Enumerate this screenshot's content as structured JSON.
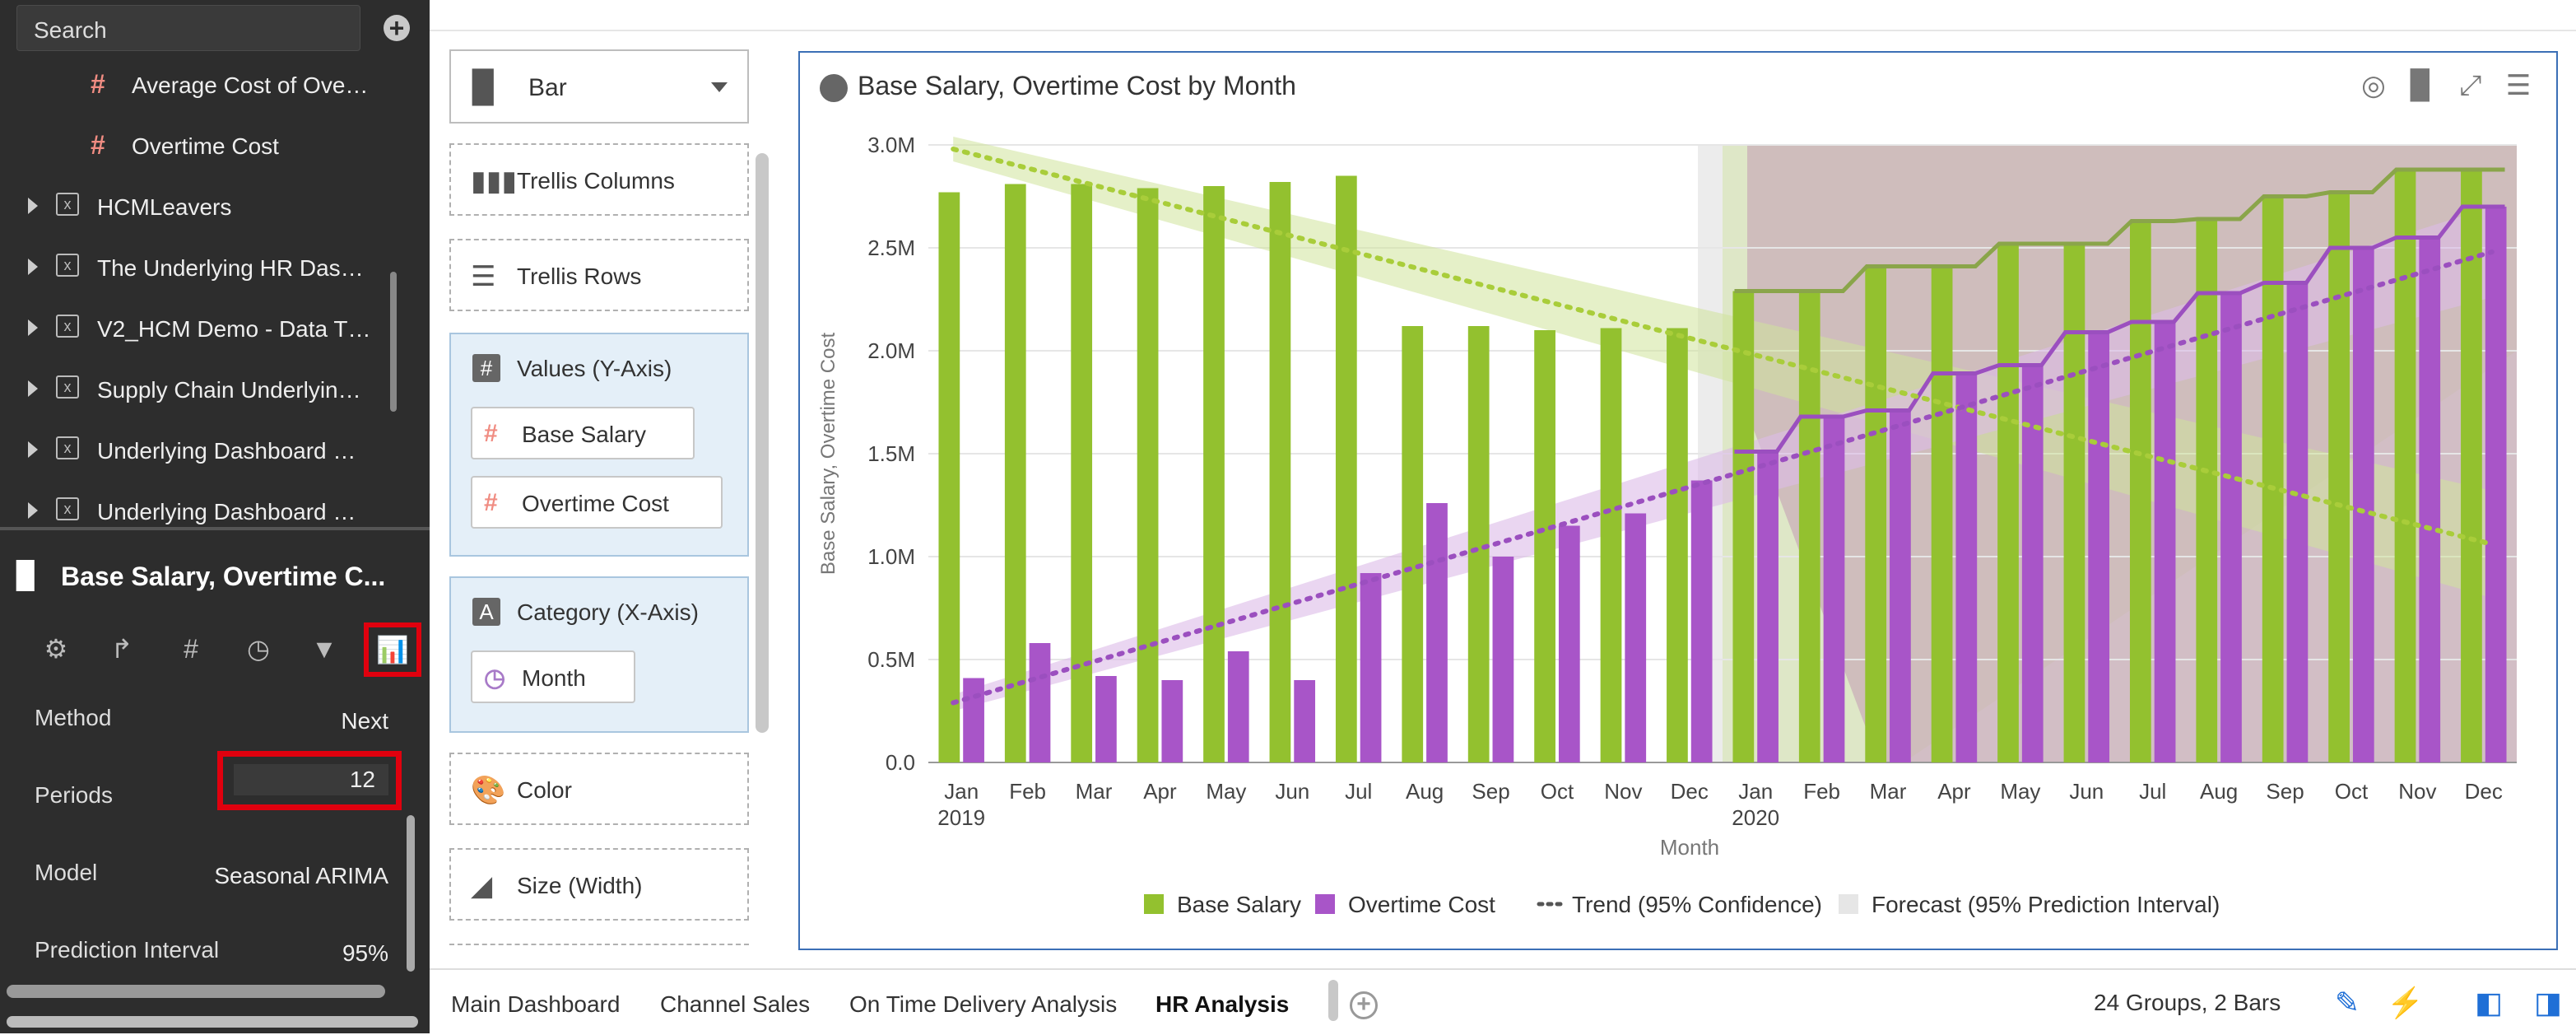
{
  "data_panel": {
    "search_placeholder": "Search",
    "tree": [
      {
        "type": "measure",
        "label": "Average Cost of Ove…"
      },
      {
        "type": "measure",
        "label": "Overtime Cost"
      },
      {
        "type": "dataset",
        "label": "HCMLeavers"
      },
      {
        "type": "dataset",
        "label": "The Underlying HR Das…"
      },
      {
        "type": "dataset",
        "label": "V2_HCM Demo - Data T…"
      },
      {
        "type": "dataset",
        "label": "Supply Chain Underlyin…"
      },
      {
        "type": "dataset",
        "label": "Underlying Dashboard …"
      },
      {
        "type": "dataset",
        "label": "Underlying Dashboard …"
      }
    ]
  },
  "properties": {
    "title": "Base Salary, Overtime C...",
    "tabs": [
      "general-icon",
      "axis-icon",
      "values-icon",
      "time-icon",
      "filter-icon",
      "analytics-icon"
    ],
    "rows": [
      {
        "label": "Method",
        "value": "Next"
      },
      {
        "label": "Periods",
        "value": "12"
      },
      {
        "label": "Model",
        "value": "Seasonal ARIMA"
      },
      {
        "label": "Prediction Interval",
        "value": "95%"
      }
    ]
  },
  "grammar": {
    "chart_type": "Bar",
    "trellis_columns": "Trellis Columns",
    "trellis_rows": "Trellis Rows",
    "values_title": "Values (Y-Axis)",
    "values": [
      "Base Salary",
      "Overtime Cost"
    ],
    "category_title": "Category (X-Axis)",
    "category": "Month",
    "color": "Color",
    "size": "Size (Width)"
  },
  "chart": {
    "title": "Base Salary, Overtime Cost by Month",
    "toolbar_icons": [
      "target-icon",
      "bar-chart-icon",
      "expand-icon",
      "menu-icon"
    ]
  },
  "chart_data": {
    "type": "bar",
    "title": "Base Salary, Overtime Cost by Month",
    "xlabel": "Month",
    "ylabel": "Base Salary, Overtime Cost",
    "ylim": [
      0,
      3000000
    ],
    "yticks": [
      "0.0",
      "0.5M",
      "1.0M",
      "1.5M",
      "2.0M",
      "2.5M",
      "3.0M"
    ],
    "categories": [
      "Jan 2019",
      "Feb",
      "Mar",
      "Apr",
      "May",
      "Jun",
      "Jul",
      "Aug",
      "Sep",
      "Oct",
      "Nov",
      "Dec",
      "Jan 2020",
      "Feb",
      "Mar",
      "Apr",
      "May",
      "Jun",
      "Jul",
      "Aug",
      "Sep",
      "Oct",
      "Nov",
      "Dec"
    ],
    "series": [
      {
        "name": "Base Salary",
        "color": "#93c12f",
        "values": [
          2770000,
          2810000,
          2810000,
          2790000,
          2800000,
          2820000,
          2850000,
          2120000,
          2120000,
          2100000,
          2110000,
          2110000,
          2290000,
          2290000,
          2410000,
          2410000,
          2520000,
          2520000,
          2630000,
          2640000,
          2750000,
          2770000,
          2880000,
          2880000
        ]
      },
      {
        "name": "Overtime Cost",
        "color": "#a855c8",
        "values": [
          410000,
          580000,
          420000,
          400000,
          540000,
          400000,
          920000,
          1260000,
          1000000,
          1150000,
          1210000,
          1370000,
          1510000,
          1680000,
          1710000,
          1890000,
          1930000,
          2090000,
          2140000,
          2280000,
          2330000,
          2500000,
          2550000,
          2700000
        ]
      }
    ],
    "trend": [
      {
        "series": "Base Salary",
        "start": 2980000,
        "end": 1060000
      },
      {
        "series": "Overtime Cost",
        "start": 290000,
        "end": 2480000
      }
    ],
    "forecast_start_index": 12,
    "legend": [
      "Base Salary",
      "Overtime Cost",
      "Trend (95% Confidence)",
      "Forecast (95% Prediction Interval)"
    ],
    "legend_position": "bottom"
  },
  "footer": {
    "tabs": [
      "Main Dashboard",
      "Channel Sales",
      "On Time Delivery Analysis",
      "HR Analysis"
    ],
    "status": "24 Groups, 2 Bars",
    "icons": [
      "brush-icon",
      "lightning-icon",
      "panel-left-icon",
      "panel-right-icon"
    ]
  }
}
